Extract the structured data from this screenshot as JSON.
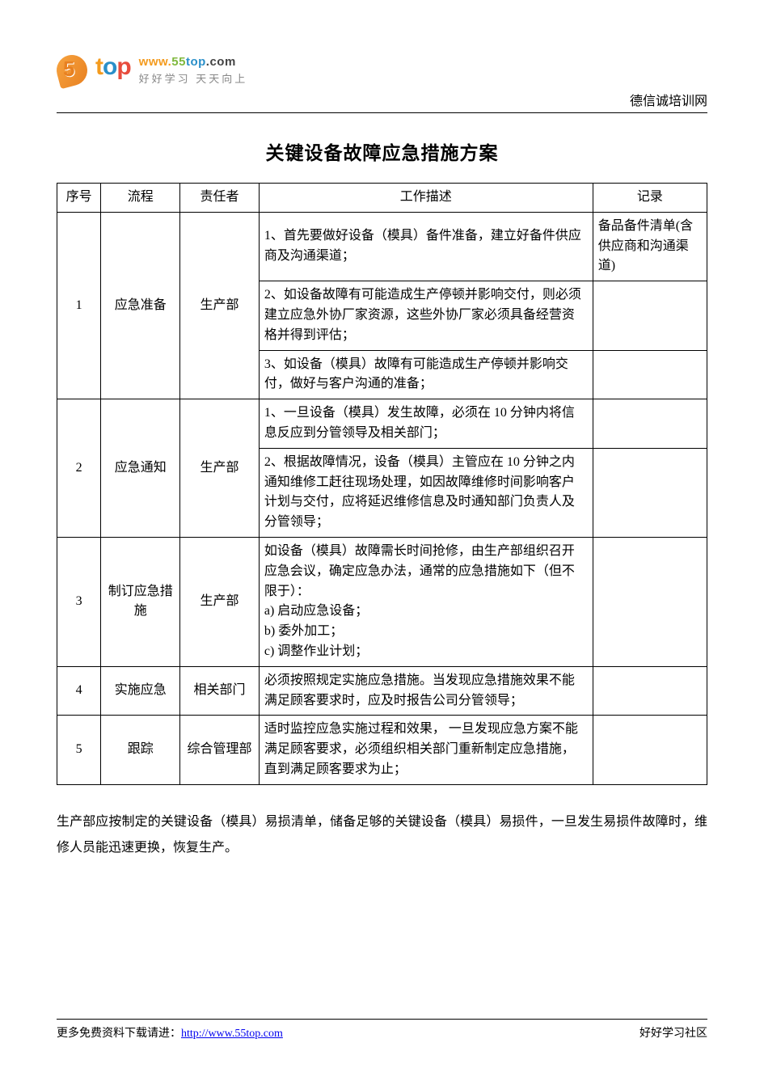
{
  "header": {
    "brand_name": "5top",
    "brand_url_parts": [
      "www.",
      "55",
      "top",
      ".com"
    ],
    "brand_slogan": "好好学习  天天向上",
    "site_name": "德信诚培训网"
  },
  "title": "关键设备故障应急措施方案",
  "columns": [
    "序号",
    "流程",
    "责任者",
    "工作描述",
    "记录"
  ],
  "rows": [
    {
      "seq": "1",
      "process": "应急准备",
      "responsible": "生产部",
      "descs": [
        "1、首先要做好设备（模具）备件准备，建立好备件供应商及沟通渠道；",
        "2、如设备故障有可能造成生产停顿并影响交付，则必须建立应急外协厂家资源，这些外协厂家必须具备经营资格并得到评估；",
        "3、如设备（模具）故障有可能造成生产停顿并影响交付，做好与客户沟通的准备；"
      ],
      "records": [
        "备品备件清单(含供应商和沟通渠道)",
        "",
        ""
      ]
    },
    {
      "seq": "2",
      "process": "应急通知",
      "responsible": "生产部",
      "descs": [
        "1、一旦设备（模具）发生故障，必须在 10 分钟内将信息反应到分管领导及相关部门；",
        "2、根据故障情况，设备（模具）主管应在 10 分钟之内通知维修工赶往现场处理，如因故障维修时间影响客户计划与交付，应将延迟维修信息及时通知部门负责人及分管领导；"
      ],
      "records": [
        "",
        ""
      ]
    },
    {
      "seq": "3",
      "process": "制订应急措施",
      "responsible": "生产部",
      "descs": [
        "如设备（模具）故障需长时间抢修，由生产部组织召开应急会议，确定应急办法，通常的应急措施如下（但不限于）：\na) 启动应急设备；\nb) 委外加工；\nc) 调整作业计划；"
      ],
      "records": [
        ""
      ]
    },
    {
      "seq": "4",
      "process": "实施应急",
      "responsible": "相关部门",
      "descs": [
        "必须按照规定实施应急措施。当发现应急措施效果不能满足顾客要求时，应及时报告公司分管领导；"
      ],
      "records": [
        ""
      ]
    },
    {
      "seq": "5",
      "process": "跟踪",
      "responsible": "综合管理部",
      "descs": [
        "适时监控应急实施过程和效果，  一旦发现应急方案不能满足顾客要求，必须组织相关部门重新制定应急措施，直到满足顾客要求为止；"
      ],
      "records": [
        ""
      ]
    }
  ],
  "note": "生产部应按制定的关键设备（模具）易损清单，储备足够的关键设备（模具）易损件，一旦发生易损件故障时，维修人员能迅速更换，恢复生产。",
  "footer": {
    "left_prefix": "更多免费资料下载请进：",
    "link_text": "http://www.55top.com",
    "right": "好好学习社区"
  }
}
